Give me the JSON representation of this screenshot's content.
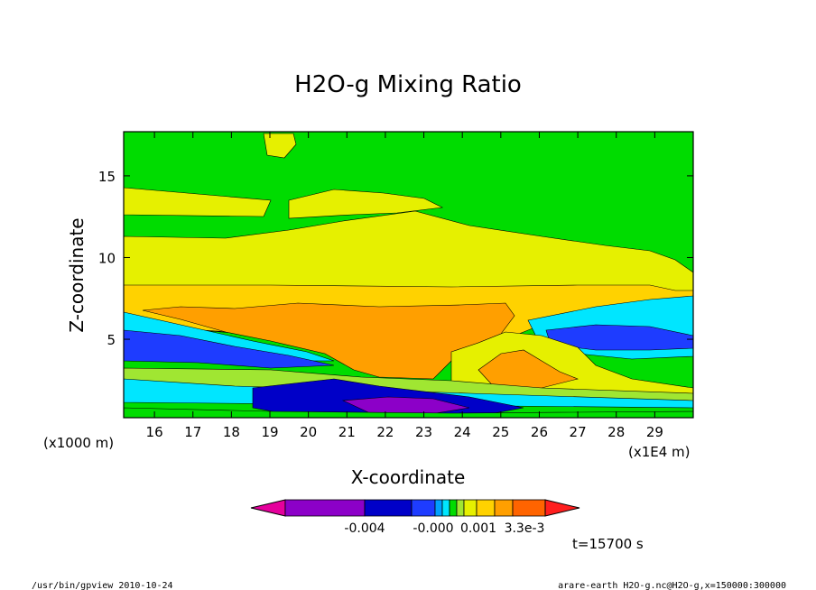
{
  "chart_data": {
    "type": "heatmap",
    "title": "H2O-g Mixing Ratio",
    "xlabel": "X-coordinate",
    "ylabel": "Z-coordinate",
    "x_unit": "(x1E4 m)",
    "y_unit": "(x1000 m)",
    "xlim": [
      15.2,
      30.0
    ],
    "ylim": [
      0.2,
      17.7
    ],
    "x_ticks": [
      "16",
      "17",
      "18",
      "19",
      "20",
      "21",
      "22",
      "23",
      "24",
      "25",
      "26",
      "27",
      "28",
      "29"
    ],
    "y_ticks": [
      "5",
      "10",
      "15"
    ],
    "colorbar": {
      "colors": [
        "#e5009c",
        "#8c00c8",
        "#0000c8",
        "#1e3cff",
        "#00a0ff",
        "#00e6ff",
        "#00dc00",
        "#a0e632",
        "#e6f000",
        "#ffd200",
        "#ff9f00",
        "#ff6400",
        "#ff1e1e"
      ],
      "tick_labels": [
        "-0.004",
        "-0.000",
        "0.001",
        "3.3e-3"
      ]
    },
    "time_label": "t=15700 s"
  },
  "footer": {
    "left": "/usr/bin/gpview  2010-10-24",
    "right": "arare-earth_H2O-g.nc@H2O-g,x=150000:300000"
  }
}
